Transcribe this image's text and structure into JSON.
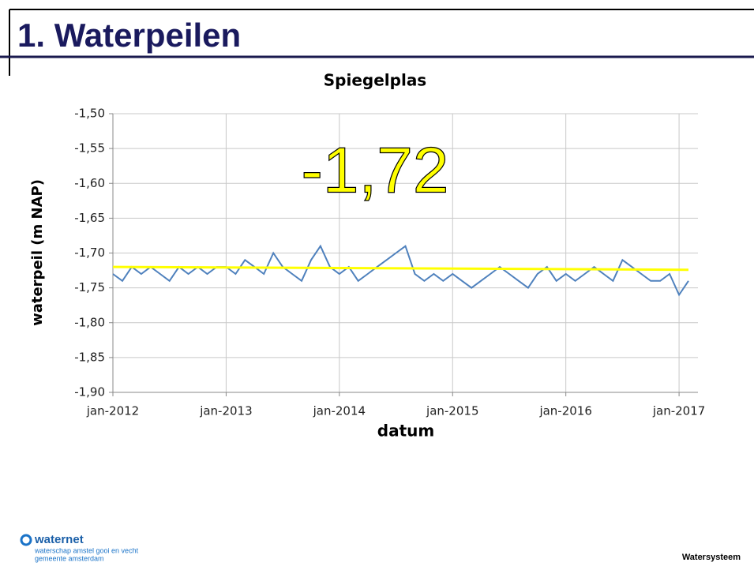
{
  "slide": {
    "title": "1. Waterpeilen",
    "logo": "waternet",
    "logo_line1": "waterschap amstel gooi en vecht",
    "logo_line2": "gemeente amsterdam",
    "footer": "Watersysteem"
  },
  "chart_data": {
    "type": "line",
    "title": "Spiegelplas",
    "xlabel": "datum",
    "ylabel": "waterpeil (m NAP)",
    "annotation": "-1,72",
    "x": [
      "2012-01",
      "2012-02",
      "2012-03",
      "2012-04",
      "2012-05",
      "2012-06",
      "2012-07",
      "2012-08",
      "2012-09",
      "2012-10",
      "2012-11",
      "2012-12",
      "2013-01",
      "2013-02",
      "2013-03",
      "2013-04",
      "2013-05",
      "2013-06",
      "2013-07",
      "2013-08",
      "2013-09",
      "2013-10",
      "2013-11",
      "2013-12",
      "2014-01",
      "2014-02",
      "2014-03",
      "2014-04",
      "2014-05",
      "2014-06",
      "2014-07",
      "2014-08",
      "2014-09",
      "2014-10",
      "2014-11",
      "2014-12",
      "2015-01",
      "2015-02",
      "2015-03",
      "2015-04",
      "2015-05",
      "2015-06",
      "2015-07",
      "2015-08",
      "2015-09",
      "2015-10",
      "2015-11",
      "2015-12",
      "2016-01",
      "2016-02",
      "2016-03",
      "2016-04",
      "2016-05",
      "2016-06",
      "2016-07",
      "2016-08",
      "2016-09",
      "2016-10",
      "2016-11",
      "2016-12",
      "2017-01",
      "2017-02"
    ],
    "series": [
      {
        "name": "waterpeil",
        "color": "#4f81bd",
        "values": [
          -1.73,
          -1.74,
          -1.72,
          -1.73,
          -1.72,
          -1.73,
          -1.74,
          -1.72,
          -1.73,
          -1.72,
          -1.73,
          -1.72,
          -1.72,
          -1.73,
          -1.71,
          -1.72,
          -1.73,
          -1.7,
          -1.72,
          -1.73,
          -1.74,
          -1.71,
          -1.69,
          -1.72,
          -1.73,
          -1.72,
          -1.74,
          -1.73,
          -1.72,
          -1.71,
          -1.7,
          -1.69,
          -1.73,
          -1.74,
          -1.73,
          -1.74,
          -1.73,
          -1.74,
          -1.75,
          -1.74,
          -1.73,
          -1.72,
          -1.73,
          -1.74,
          -1.75,
          -1.73,
          -1.72,
          -1.74,
          -1.73,
          -1.74,
          -1.73,
          -1.72,
          -1.73,
          -1.74,
          -1.71,
          -1.72,
          -1.73,
          -1.74,
          -1.74,
          -1.73,
          -1.76,
          -1.74
        ]
      }
    ],
    "trend": {
      "color": "#ffff00",
      "x": [
        "2012-01",
        "2017-02"
      ],
      "values": [
        -1.72,
        -1.724
      ]
    },
    "xlim": [
      "2012-01",
      "2017-03"
    ],
    "xticks": [
      {
        "value": "2012-01",
        "label": "jan-2012"
      },
      {
        "value": "2013-01",
        "label": "jan-2013"
      },
      {
        "value": "2014-01",
        "label": "jan-2014"
      },
      {
        "value": "2015-01",
        "label": "jan-2015"
      },
      {
        "value": "2016-01",
        "label": "jan-2016"
      },
      {
        "value": "2017-01",
        "label": "jan-2017"
      }
    ],
    "ylim": [
      -1.9,
      -1.5
    ],
    "yticks": [
      {
        "value": -1.9,
        "label": "-1,90"
      },
      {
        "value": -1.85,
        "label": "-1,85"
      },
      {
        "value": -1.8,
        "label": "-1,80"
      },
      {
        "value": -1.75,
        "label": "-1,75"
      },
      {
        "value": -1.7,
        "label": "-1,70"
      },
      {
        "value": -1.65,
        "label": "-1,65"
      },
      {
        "value": -1.6,
        "label": "-1,60"
      },
      {
        "value": -1.55,
        "label": "-1,55"
      },
      {
        "value": -1.5,
        "label": "-1,50"
      }
    ],
    "grid": true
  }
}
